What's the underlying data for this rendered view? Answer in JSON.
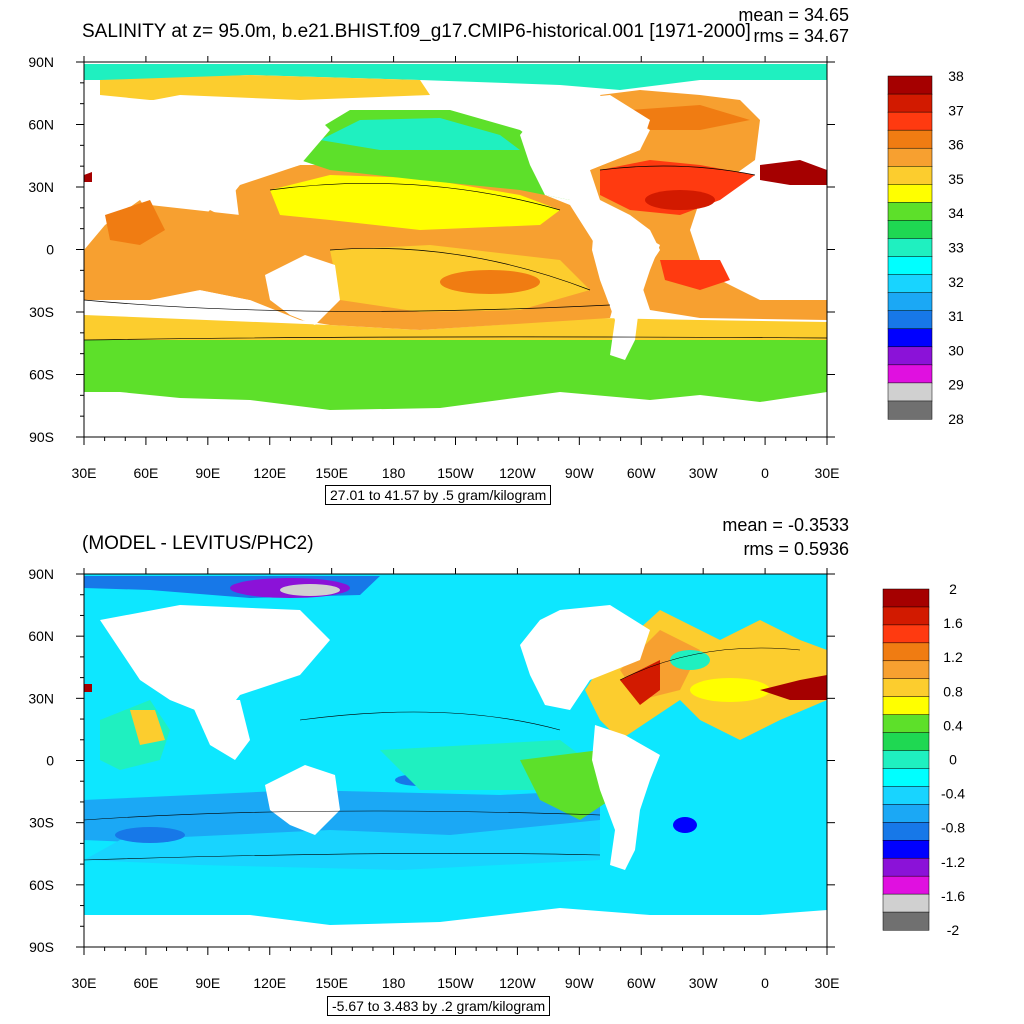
{
  "chart_data": [
    {
      "type": "heatmap",
      "title": "SALINITY at z=  95.0m, b.e21.BHIST.f09_g17.CMIP6-historical.001 [1971-2000]",
      "stats": {
        "mean": "mean = 34.65",
        "rms": "rms = 34.67"
      },
      "range_label": "27.01 to 41.57 by .5 gram/kilogram",
      "x_ticks": [
        "30E",
        "60E",
        "90E",
        "120E",
        "150E",
        "180",
        "150W",
        "120W",
        "90W",
        "60W",
        "30W",
        "0",
        "30E"
      ],
      "y_ticks": [
        "90N",
        "60N",
        "30N",
        "0",
        "30S",
        "60S",
        "90S"
      ],
      "colorbar": {
        "labels": [
          "38",
          "37",
          "36",
          "35",
          "34",
          "33",
          "32",
          "31",
          "30",
          "29",
          "28"
        ],
        "colors": [
          "#a50000",
          "#d21a00",
          "#ff3a10",
          "#f07c12",
          "#f7a030",
          "#fccd2e",
          "#ffff00",
          "#5de02a",
          "#1fd852",
          "#1ff0c0",
          "#00ffff",
          "#18d4ff",
          "#1ba8f5",
          "#1778e8",
          "#0000ff",
          "#8b12d8",
          "#e010e0",
          "#d0d0d0",
          "#707070"
        ]
      }
    },
    {
      "type": "heatmap",
      "title": "(MODEL - LEVITUS/PHC2)",
      "stats": {
        "mean": "mean = -0.3533",
        "rms": "rms = 0.5936"
      },
      "range_label": "-5.67 to 3.483 by .2 gram/kilogram",
      "x_ticks": [
        "30E",
        "60E",
        "90E",
        "120E",
        "150E",
        "180",
        "150W",
        "120W",
        "90W",
        "60W",
        "30W",
        "0",
        "30E"
      ],
      "y_ticks": [
        "90N",
        "60N",
        "30N",
        "0",
        "30S",
        "60S",
        "90S"
      ],
      "colorbar": {
        "labels": [
          "2",
          "1.6",
          "1.2",
          "0.8",
          "0.4",
          "0",
          "-0.4",
          "-0.8",
          "-1.2",
          "-1.6",
          "-2"
        ],
        "colors": [
          "#a50000",
          "#d21a00",
          "#ff3a10",
          "#f07c12",
          "#f7a030",
          "#fccd2e",
          "#ffff00",
          "#5de02a",
          "#1fd852",
          "#1ff0c0",
          "#00ffff",
          "#18d4ff",
          "#1ba8f5",
          "#1778e8",
          "#0000ff",
          "#8b12d8",
          "#e010e0",
          "#d0d0d0",
          "#707070"
        ]
      }
    }
  ]
}
